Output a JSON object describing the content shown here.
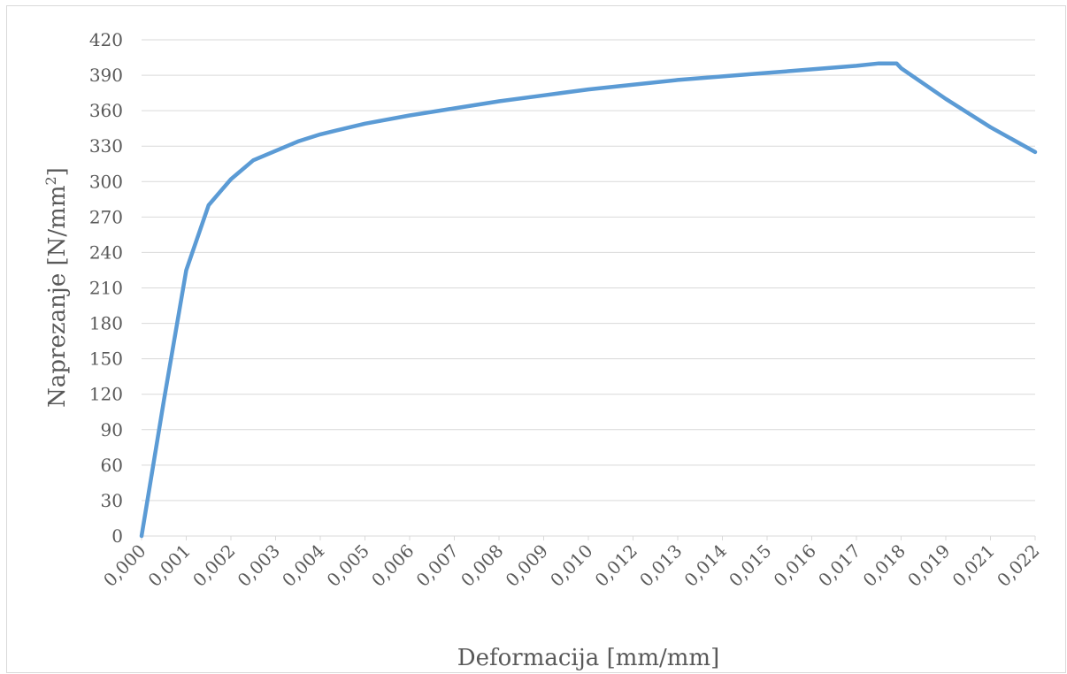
{
  "chart_data": {
    "type": "line",
    "title": "",
    "xlabel": "Deformacija [mm/mm]",
    "ylabel": "Naprezanje [N/mm²]",
    "ylabel_main": "Naprezanje [N/mm",
    "ylabel_sup": "2",
    "ylabel_end": "]",
    "ylim": [
      0,
      420
    ],
    "y_ticks": [
      "0",
      "30",
      "60",
      "90",
      "120",
      "150",
      "180",
      "210",
      "240",
      "270",
      "300",
      "330",
      "360",
      "390",
      "420"
    ],
    "x_categories": [
      "0,000",
      "0,001",
      "0,002",
      "0,003",
      "0,004",
      "0,005",
      "0,006",
      "0,007",
      "0,008",
      "0,009",
      "0,010",
      "0,012",
      "0,013",
      "0,014",
      "0,015",
      "0,016",
      "0,017",
      "0,018",
      "0,019",
      "0,021",
      "0,022"
    ],
    "grid": true,
    "legend": "none",
    "series": [
      {
        "color": "#5b9bd5",
        "x": [
          0,
          0.5,
          1,
          1.5,
          2,
          2.5,
          3,
          3.5,
          4,
          5,
          6,
          7,
          8,
          9,
          10,
          11,
          12,
          13,
          14,
          15,
          16,
          16.5,
          16.9,
          17,
          18,
          19,
          20
        ],
        "values": [
          0,
          115,
          225,
          280,
          302,
          318,
          326,
          334,
          340,
          349,
          356,
          362,
          368,
          373,
          378,
          382,
          386,
          389,
          392,
          395,
          398,
          400,
          400,
          396,
          370,
          346,
          325
        ]
      }
    ]
  }
}
